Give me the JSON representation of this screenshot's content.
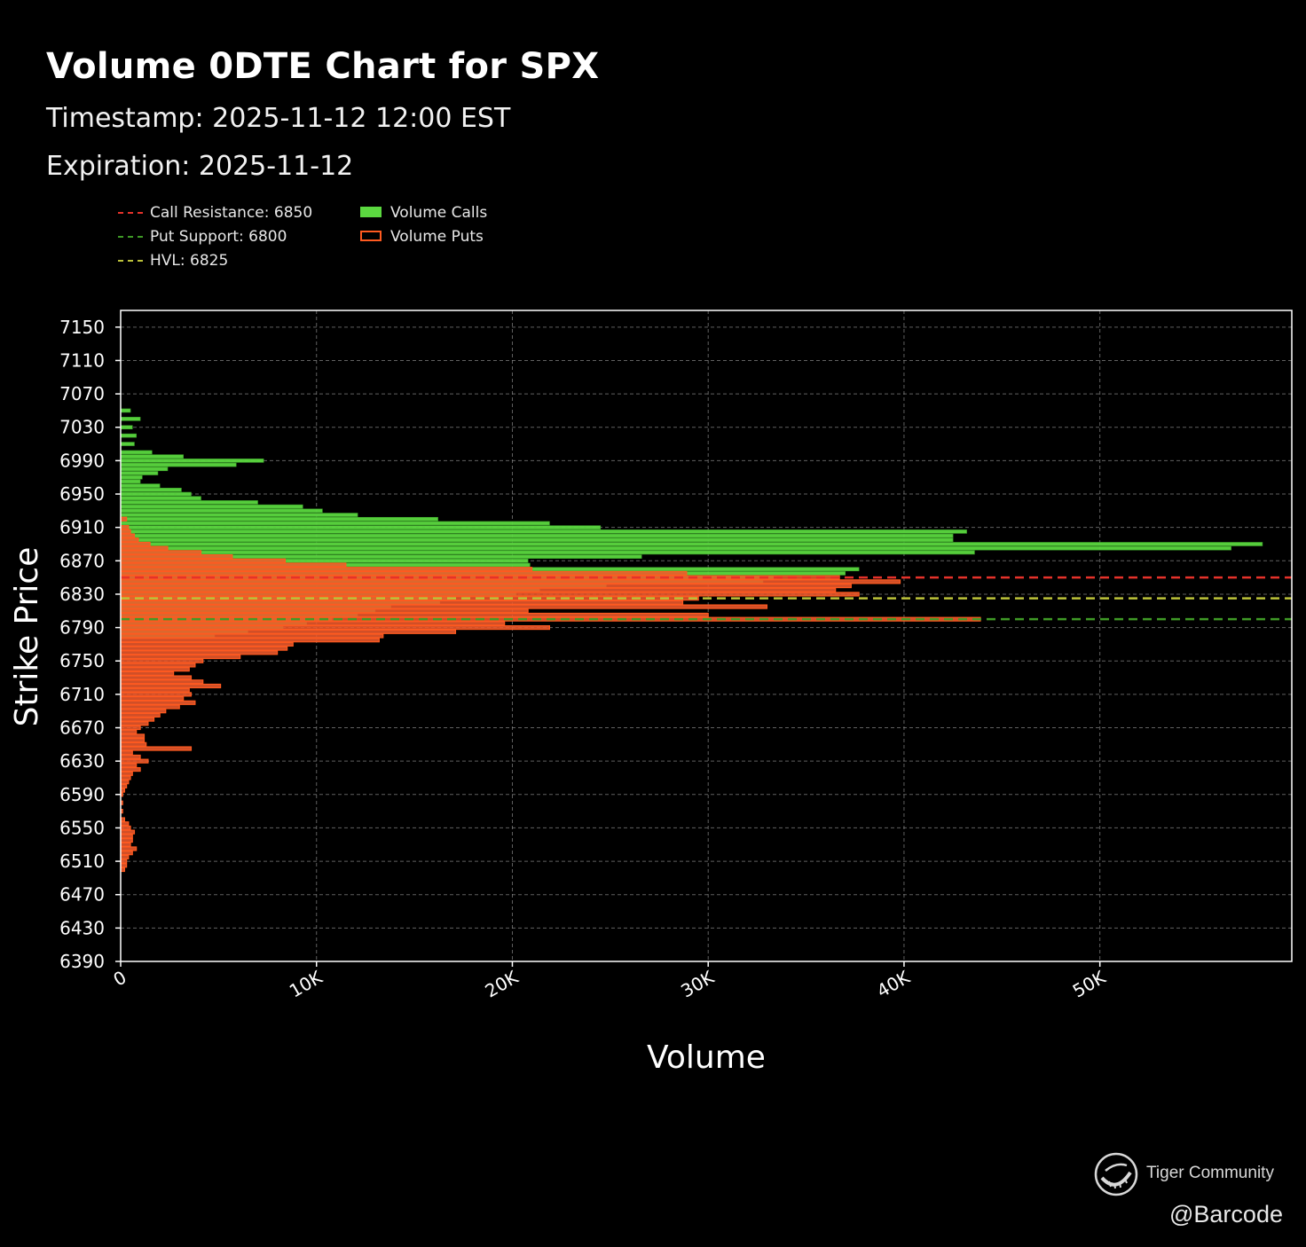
{
  "header": {
    "title": "Volume 0DTE Chart for SPX",
    "timestamp": "Timestamp: 2025-11-12 12:00 EST",
    "expiration": "Expiration: 2025-11-12"
  },
  "legend": {
    "call_resistance": "Call Resistance: 6850",
    "put_support": "Put Support: 6800",
    "hvl": "HVL: 6825",
    "volume_calls": "Volume Calls",
    "volume_puts": "Volume Puts"
  },
  "watermark": {
    "brand": "Tiger Community",
    "handle": "@Barcode"
  },
  "colors": {
    "calls": "#5bd840",
    "calls_edge": "#3fa82c",
    "puts": "#ee5a2c",
    "puts_edge": "#ff5a20",
    "call_resistance": "#e5322a",
    "put_support": "#3f9a26",
    "hvl": "#bcc23a",
    "grid": "#8a8a8a",
    "axis": "#ffffff"
  },
  "chart_data": {
    "type": "bar",
    "orientation": "horizontal",
    "xlabel": "Volume",
    "ylabel": "Strike Price",
    "xlim": [
      0,
      59800
    ],
    "ylim": [
      6390,
      7170
    ],
    "x_ticks": [
      0,
      10000,
      20000,
      30000,
      40000,
      50000
    ],
    "x_tick_labels": [
      "0",
      "10K",
      "20K",
      "30K",
      "40K",
      "50K"
    ],
    "y_ticks": [
      6390,
      6430,
      6470,
      6510,
      6550,
      6590,
      6630,
      6670,
      6710,
      6750,
      6790,
      6830,
      6870,
      6910,
      6950,
      6990,
      7030,
      7070,
      7110,
      7150
    ],
    "grid": true,
    "legend_position": "top-left",
    "reference_lines": [
      {
        "name": "Call Resistance",
        "value": 6850,
        "style": "dashed"
      },
      {
        "name": "Put Support",
        "value": 6800,
        "style": "dashed"
      },
      {
        "name": "HVL",
        "value": 6825,
        "style": "dashed"
      }
    ],
    "series": [
      {
        "name": "Volume Calls",
        "strikes": [
          7050,
          7040,
          7030,
          7020,
          7010,
          7000,
          6995,
          6990,
          6985,
          6980,
          6975,
          6970,
          6965,
          6960,
          6955,
          6950,
          6945,
          6940,
          6935,
          6930,
          6925,
          6920,
          6915,
          6910,
          6905,
          6900,
          6895,
          6890,
          6885,
          6880,
          6875,
          6870,
          6865,
          6860,
          6855,
          6850,
          6845,
          6840,
          6835,
          6830,
          6825,
          6820,
          6815,
          6810,
          6805,
          6800,
          6795,
          6790,
          6785,
          6780
        ],
        "values": [
          500,
          1000,
          600,
          800,
          700,
          1600,
          3200,
          7300,
          5900,
          2400,
          1900,
          1100,
          1000,
          2000,
          3100,
          3600,
          4100,
          7000,
          9300,
          10300,
          12100,
          16200,
          21900,
          24500,
          43200,
          42500,
          42500,
          58300,
          56700,
          43600,
          26600,
          20800,
          20900,
          37700,
          37000,
          33500,
          32800,
          24800,
          21400,
          20200,
          16800,
          16300,
          13800,
          13000,
          12100,
          10800,
          9500,
          8300,
          6500,
          4800
        ],
        "color": "#5bd840"
      },
      {
        "name": "Volume Puts",
        "strikes": [
          6920,
          6910,
          6905,
          6900,
          6895,
          6890,
          6885,
          6880,
          6875,
          6870,
          6865,
          6860,
          6855,
          6850,
          6845,
          6840,
          6835,
          6830,
          6825,
          6820,
          6815,
          6810,
          6805,
          6800,
          6795,
          6790,
          6785,
          6780,
          6775,
          6770,
          6765,
          6760,
          6755,
          6750,
          6745,
          6740,
          6735,
          6730,
          6725,
          6720,
          6715,
          6710,
          6705,
          6700,
          6695,
          6690,
          6685,
          6680,
          6675,
          6670,
          6665,
          6660,
          6655,
          6650,
          6645,
          6640,
          6635,
          6630,
          6625,
          6620,
          6615,
          6610,
          6605,
          6600,
          6595,
          6590,
          6580,
          6570,
          6560,
          6555,
          6550,
          6545,
          6540,
          6535,
          6530,
          6525,
          6520,
          6515,
          6510,
          6505,
          6500
        ],
        "values": [
          300,
          400,
          500,
          700,
          900,
          1500,
          2400,
          4100,
          5700,
          8400,
          11500,
          21000,
          28900,
          36700,
          39800,
          37300,
          36500,
          37700,
          29500,
          28700,
          33000,
          20800,
          30000,
          43900,
          19600,
          21900,
          17100,
          13400,
          13200,
          8800,
          8500,
          8000,
          6100,
          4200,
          3800,
          3500,
          2700,
          3600,
          4200,
          5100,
          3500,
          3600,
          3200,
          3800,
          3000,
          2300,
          2000,
          1700,
          1400,
          1000,
          800,
          1200,
          1200,
          1300,
          3600,
          600,
          1000,
          1400,
          800,
          1000,
          600,
          500,
          400,
          300,
          200,
          100,
          100,
          100,
          200,
          400,
          500,
          700,
          600,
          600,
          500,
          800,
          600,
          400,
          300,
          300,
          200
        ],
        "color": "#ee5a2c"
      }
    ]
  }
}
